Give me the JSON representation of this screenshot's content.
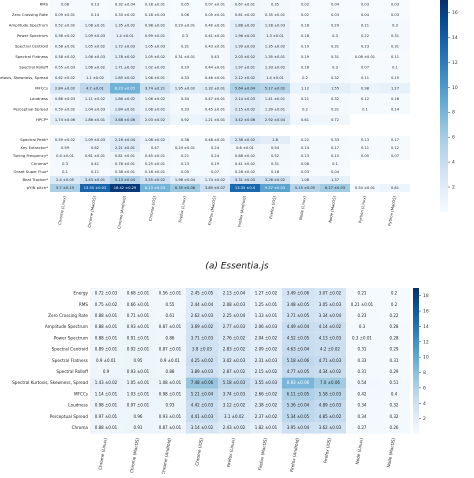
{
  "chart_data": [
    {
      "type": "heatmap",
      "caption": "(a) Essentia.js",
      "rows": [
        "RMS",
        "Zero Crossing Rate",
        "Amplitude Spectrum",
        "Power Spectrum",
        "Spectral Centroid",
        "Spectral Flatness",
        "Spectral Rolloff",
        "Spectral Kurtosis, Skewness, Spread",
        "MFCCs",
        "Loudness",
        "Perceptual Spread",
        "HPCP*",
        "Spectral Peak*",
        "Key Extractor*",
        "Tuning Frequency*",
        "Chroma*",
        "Onset Super Flux*",
        "Beat Tracker*",
        "pYIN pitch*"
      ],
      "columns": [
        "Chrome (Linux)",
        "Chrome (MacOS)",
        "Chrome (Android)",
        "Chrome (iOS)",
        "Firefox (Linux)",
        "Firefox (MacOS)",
        "Firefox (Android)",
        "Firefox (iOS)",
        "Node (Linux)",
        "Node (MacOS)",
        "Python (Linux)",
        "Python (MacOS)"
      ],
      "values": [
        [
          0.08,
          0.13,
          0.32,
          0.18,
          0.05,
          0.07,
          0.67,
          0.35,
          0.02,
          0.04,
          0.03,
          0.03
        ],
        [
          0.09,
          0.14,
          0.33,
          0.18,
          0.06,
          0.05,
          0.61,
          0.35,
          0.02,
          0.03,
          0.04,
          0.03
        ],
        [
          0.52,
          1.08,
          1.35,
          0.98,
          0.29,
          0.4,
          1.88,
          1.28,
          0.18,
          0.29,
          0.21,
          0.3
        ],
        [
          0.56,
          1.09,
          1.4,
          0.99,
          0.3,
          0.41,
          1.96,
          1.3,
          0.18,
          0.3,
          0.22,
          0.31
        ],
        [
          0.58,
          1.05,
          1.72,
          1.05,
          0.31,
          0.43,
          1.99,
          1.35,
          0.19,
          0.31,
          0.23,
          0.31
        ],
        [
          0.58,
          1.06,
          1.78,
          1.05,
          0.31,
          0.43,
          2.03,
          1.35,
          0.19,
          0.31,
          0.08,
          0.11
        ],
        [
          0.55,
          1.06,
          1.71,
          1.02,
          0.29,
          0.44,
          1.97,
          1.33,
          0.18,
          0.3,
          0.07,
          0.1
        ],
        [
          0.62,
          1.1,
          1.85,
          1.06,
          0.33,
          0.46,
          2.12,
          1.4,
          0.2,
          0.32,
          0.11,
          0.15
        ],
        [
          2.84,
          4.7,
          8.23,
          3.74,
          1.95,
          2.32,
          5.64,
          5.17,
          1.12,
          1.55,
          0.98,
          1.27
        ],
        [
          0.66,
          1.11,
          1.86,
          1.06,
          0.34,
          0.47,
          2.14,
          1.41,
          0.21,
          0.32,
          0.12,
          0.16
        ],
        [
          0.59,
          1.04,
          1.84,
          1.08,
          0.33,
          0.45,
          2.15,
          1.39,
          0.2,
          0.31,
          0.1,
          0.14
        ],
        [
          1.74,
          1.86,
          3.68,
          2.03,
          0.92,
          1.21,
          3.42,
          2.92,
          0.61,
          0.72,
          null,
          null
        ],
        [
          0.59,
          1.09,
          2.16,
          1.08,
          0.36,
          0.48,
          2.38,
          1.8,
          0.22,
          0.33,
          0.13,
          0.17
        ],
        [
          0.59,
          0.62,
          2.21,
          0.47,
          0.24,
          0.24,
          0.6,
          0.54,
          0.14,
          0.17,
          0.11,
          0.12
        ],
        [
          0.4,
          0.61,
          0.81,
          0.45,
          0.21,
          0.24,
          0.68,
          0.52,
          0.13,
          0.15,
          0.05,
          0.07
        ],
        [
          0.3,
          0.41,
          0.76,
          0.25,
          0.13,
          0.19,
          0.41,
          0.31,
          0.08,
          0.1,
          null,
          null
        ],
        [
          0.1,
          0.11,
          0.38,
          0.18,
          0.05,
          0.07,
          0.28,
          0.18,
          0.03,
          0.04,
          null,
          null
        ],
        [
          2.4,
          3.43,
          5.13,
          3.55,
          1.98,
          1.74,
          3.31,
          3.26,
          1.08,
          1.37,
          null,
          null
        ],
        [
          5.7,
          13.55,
          16.42,
          8.13,
          6.35,
          3.89,
          13.35,
          9.37,
          5.15,
          6.17,
          0.54,
          0.81
        ]
      ],
      "value_labels": [
        [
          "0.08",
          "0.13",
          "0.32 ±0.04",
          "0.18 ±0.01",
          "0.05",
          "0.07 ±0.01",
          "0.67 ±0.01",
          "0.35",
          "0.02",
          "0.04",
          "0.03",
          "0.03"
        ],
        [
          "0.09 ±0.01",
          "0.14",
          "0.33 ±0.02",
          "0.18 ±0.03",
          "0.06",
          "0.05 ±0.01",
          "0.61 ±0.02",
          "0.35 ±0.01",
          "0.02",
          "0.03",
          "0.04",
          "0.03"
        ],
        [
          "0.52 ±0.02",
          "1.08 ±0.01",
          "1.35 ±0.02",
          "0.98 ±0.02",
          "0.29 ±0.01",
          "0.40 ±0.01",
          "1.88 ±0.02",
          "1.28 ±0.03",
          "0.18",
          "0.29",
          "0.21",
          "0.3"
        ],
        [
          "0.56 ±0.02",
          "1.09 ±0.03",
          "1.4 ±0.01",
          "0.99 ±0.01",
          "0.3",
          "0.41 ±0.01",
          "1.96 ±0.03",
          "1.3 ±0.01",
          "0.18",
          "0.3",
          "0.22",
          "0.31"
        ],
        [
          "0.58 ±0.01",
          "1.05 ±0.02",
          "1.72 ±0.03",
          "1.05 ±0.03",
          "0.31",
          "0.43 ±0.01",
          "1.99 ±0.03",
          "1.35 ±0.02",
          "0.19",
          "0.31",
          "0.23",
          "0.31"
        ],
        [
          "0.58 ±0.02",
          "1.06 ±0.03",
          "1.78 ±0.02",
          "1.05 ±0.02",
          "0.31 ±0.01",
          "0.43",
          "2.03 ±0.02",
          "1.35 ±0.01",
          "0.19",
          "0.31",
          "0.08 ±0.01",
          "0.11"
        ],
        [
          "0.55 ±0.03",
          "1.06 ±0.02",
          "1.71 ±0.02",
          "1.02 ±0.02",
          "0.29",
          "0.44 ±0.01",
          "1.97 ±0.01",
          "1.33 ±0.02",
          "0.18",
          "0.3",
          "0.07",
          "0.1"
        ],
        [
          "0.62 ±0.02",
          "1.1 ±0.02",
          "1.85 ±0.02",
          "1.06 ±0.01",
          "0.33",
          "0.46 ±0.01",
          "2.12 ±0.02",
          "1.4 ±0.01",
          "0.2",
          "0.32",
          "0.11",
          "0.15"
        ],
        [
          "2.84 ±0.02",
          "4.7 ±0.01",
          "8.23 ±0.05",
          "3.74 ±0.21",
          "1.95 ±0.02",
          "2.32 ±0.01",
          "5.64 ±0.04",
          "5.17 ±0.02",
          "1.12",
          "1.55",
          "0.98",
          "1.27"
        ],
        [
          "0.66 ±0.03",
          "1.11 ±0.02",
          "1.86 ±0.02",
          "1.06 ±0.02",
          "0.34",
          "0.47 ±0.01",
          "2.14 ±0.03",
          "1.41 ±0.01",
          "0.21",
          "0.32",
          "0.12",
          "0.16"
        ],
        [
          "0.59 ±0.02",
          "1.04 ±0.03",
          "1.84 ±0.01",
          "1.08 ±0.02",
          "0.33",
          "0.45 ±0.01",
          "2.15 ±0.02",
          "1.39 ±0.01",
          "0.2",
          "0.31",
          "0.1",
          "0.14"
        ],
        [
          "1.74 ±0.06",
          "1.86 ±0.01",
          "3.68 ±0.06",
          "2.03 ±0.02",
          "0.92",
          "1.21 ±0.01",
          "3.42 ±0.06",
          "2.92 ±0.04",
          "0.61",
          "0.72",
          null,
          null
        ],
        [
          "0.59 ±0.02",
          "1.09 ±0.03",
          "2.16 ±0.04",
          "1.08 ±0.02",
          "0.36",
          "0.48 ±0.01",
          "2.38 ±0.02",
          "1.8",
          "0.22",
          "0.33",
          "0.13",
          "0.17"
        ],
        [
          "0.59",
          "0.62",
          "2.21 ±0.01",
          "0.47",
          "0.24 ±0.01",
          "0.24",
          "0.6 ±0.01",
          "0.54",
          "0.14",
          "0.17",
          "0.11",
          "0.12"
        ],
        [
          "0.4 ±0.01",
          "0.61 ±0.01",
          "0.81 ±0.01",
          "0.45 ±0.01",
          "0.21",
          "0.24",
          "0.68 ±0.02",
          "0.52",
          "0.13",
          "0.15",
          "0.05",
          "0.07"
        ],
        [
          "0.3",
          "0.41",
          "0.76 ±0.01",
          "0.25 ±0.01",
          "0.13",
          "0.19",
          "0.41 ±0.02",
          "0.31",
          "0.08",
          "0.1",
          null,
          null
        ],
        [
          "0.1",
          "0.11",
          "0.38 ±0.01",
          "0.18 ±0.01",
          "0.05",
          "0.07",
          "0.28 ±0.02",
          "0.18",
          "0.03",
          "0.04",
          null,
          null
        ],
        [
          "2.4 ±0.05",
          "3.43 ±0.01",
          "5.13 ±0.04",
          "3.55 ±0.02",
          "1.98 ±0.04",
          "1.74 ±0.02",
          "3.31 ±0.03",
          "3.26 ±0.02",
          "1.08",
          "1.37",
          null,
          null
        ],
        [
          "5.7 ±0.19",
          "13.55 ±0.03",
          "16.42 ±0.29",
          "8.13 ±0.03",
          "6.35 ±0.08",
          "3.89 ±0.07",
          "13.35 ±0.4",
          "9.37 ±0.03",
          "5.15 ±0.05",
          "6.17 ±0.03",
          "0.54 ±0.01",
          "0.81"
        ]
      ],
      "clim": [
        0,
        17
      ],
      "cticks": [
        2,
        4,
        6,
        8,
        10,
        12,
        14,
        16
      ]
    },
    {
      "type": "heatmap",
      "rows": [
        "Energy",
        "RMS",
        "Zero Crossing Rate",
        "Amplitude Spectrum",
        "Power Spectrum",
        "Spectral Centroid",
        "Spectral Flatness",
        "Spectral Rolloff",
        "Spectral Kurtosis, Skewness, Spread",
        "MFCCs",
        "Loudness",
        "Perceptual Spread",
        "Chroma"
      ],
      "columns": [
        "Chrome (Linux)",
        "Chrome (MacOS)",
        "Chrome (Android)",
        "Chrome (iOS)",
        "Firefox (Linux)",
        "Firefox (MacOS)",
        "Firefox (Android)",
        "Firefox (iOS)",
        "Node (Linux)",
        "Node (MacOS)"
      ],
      "values": [
        [
          0.72,
          0.68,
          0.56,
          2.45,
          2.13,
          1.27,
          3.49,
          3.07,
          0.21,
          0.2
        ],
        [
          0.75,
          0.66,
          0.55,
          2.44,
          2.08,
          1.25,
          3.48,
          3.05,
          0.21,
          0.2
        ],
        [
          0.88,
          0.71,
          0.61,
          2.62,
          2.25,
          1.33,
          3.71,
          3.34,
          0.23,
          0.22
        ],
        [
          0.88,
          0.93,
          0.87,
          3.69,
          2.77,
          2.06,
          4.49,
          4.14,
          0.3,
          0.28
        ],
        [
          0.88,
          0.91,
          0.86,
          3.71,
          2.76,
          2.04,
          4.52,
          4.13,
          0.3,
          0.28
        ],
        [
          0.89,
          0.92,
          0.87,
          3.8,
          2.83,
          2.09,
          4.63,
          4.2,
          0.31,
          0.29
        ],
        [
          0.9,
          0.95,
          0.9,
          4.25,
          3.02,
          2.31,
          5.18,
          4.71,
          0.33,
          0.31
        ],
        [
          0.9,
          0.93,
          0.88,
          3.89,
          2.87,
          2.15,
          4.77,
          4.34,
          0.31,
          0.29
        ],
        [
          1.43,
          1.05,
          1.08,
          7.48,
          5.18,
          3.55,
          8.83,
          7.0,
          0.54,
          0.51
        ],
        [
          1.14,
          1.03,
          0.98,
          5.21,
          3.74,
          2.66,
          6.11,
          5.58,
          0.42,
          0.4
        ],
        [
          0.98,
          0.97,
          0.93,
          4.42,
          3.12,
          2.38,
          5.36,
          4.89,
          0.34,
          0.32
        ],
        [
          0.97,
          0.96,
          0.93,
          4.41,
          3.1,
          2.37,
          5.34,
          4.85,
          0.34,
          0.32
        ],
        [
          0.88,
          0.91,
          0.87,
          3.14,
          2.43,
          1.82,
          3.95,
          3.62,
          0.27,
          0.26
        ]
      ],
      "value_labels": [
        [
          "0.72 ±0.03",
          "0.68 ±0.01",
          "0.56 ±0.01",
          "2.45 ±0.05",
          "2.13 ±0.04",
          "1.27 ±0.02",
          "3.49 ±0.06",
          "3.07 ±0.02",
          "0.21",
          "0.2"
        ],
        [
          "0.75 ±0.02",
          "0.66 ±0.01",
          "0.55",
          "2.44 ±0.04",
          "2.08 ±0.03",
          "1.25 ±0.01",
          "3.48 ±0.05",
          "3.05 ±0.03",
          "0.21 ±0.01",
          "0.2"
        ],
        [
          "0.88 ±0.01",
          "0.71 ±0.01",
          "0.61",
          "2.62 ±0.03",
          "2.25 ±0.04",
          "1.33 ±0.01",
          "3.71 ±0.05",
          "3.34 ±0.04",
          "0.23",
          "0.22"
        ],
        [
          "0.88 ±0.01",
          "0.93 ±0.01",
          "0.87 ±0.01",
          "3.69 ±0.02",
          "2.77 ±0.03",
          "2.06 ±0.03",
          "4.49 ±0.04",
          "4.14 ±0.02",
          "0.3",
          "0.28"
        ],
        [
          "0.88 ±0.01",
          "0.91 ±0.01",
          "0.86",
          "3.71 ±0.03",
          "2.76 ±0.02",
          "2.04 ±0.02",
          "4.52 ±0.05",
          "4.13 ±0.03",
          "0.3 ±0.01",
          "0.28"
        ],
        [
          "0.89 ±0.01",
          "0.92 ±0.01",
          "0.87 ±0.01",
          "3.8 ±0.03",
          "2.83 ±0.02",
          "2.09 ±0.02",
          "4.63 ±0.04",
          "4.2 ±0.02",
          "0.31",
          "0.29"
        ],
        [
          "0.9 ±0.01",
          "0.95",
          "0.9 ±0.01",
          "4.25 ±0.02",
          "3.02 ±0.03",
          "2.31 ±0.03",
          "5.18 ±0.06",
          "4.71 ±0.03",
          "0.33",
          "0.31"
        ],
        [
          "0.9",
          "0.93 ±0.01",
          "0.88",
          "3.89 ±0.03",
          "2.87 ±0.02",
          "2.15 ±0.02",
          "4.77 ±0.05",
          "4.34 ±0.02",
          "0.31",
          "0.29"
        ],
        [
          "1.43 ±0.02",
          "1.05 ±0.01",
          "1.08 ±0.01",
          "7.48 ±0.06",
          "5.18 ±0.03",
          "3.55 ±0.03",
          "8.83 ±0.06",
          "7.0 ±0.06",
          "0.54",
          "0.51"
        ],
        [
          "1.14 ±0.01",
          "1.03 ±0.01",
          "0.98 ±0.01",
          "5.21 ±0.04",
          "3.74 ±0.03",
          "2.66 ±0.02",
          "6.11 ±0.05",
          "5.58 ±0.03",
          "0.42",
          "0.4"
        ],
        [
          "0.98 ±0.01",
          "0.97 ±0.01",
          "0.93",
          "4.42 ±0.03",
          "3.12 ±0.02",
          "2.38 ±0.02",
          "5.36 ±0.04",
          "4.89 ±0.03",
          "0.34",
          "0.32"
        ],
        [
          "0.97 ±0.01",
          "0.96",
          "0.93 ±0.01",
          "4.41 ±0.03",
          "3.1 ±0.02",
          "2.37 ±0.02",
          "5.34 ±0.05",
          "4.85 ±0.02",
          "0.34",
          "0.32"
        ],
        [
          "0.88 ±0.01",
          "0.91",
          "0.87 ±0.01",
          "3.14 ±0.02",
          "2.43 ±0.02",
          "1.82 ±0.01",
          "3.95 ±0.04",
          "3.62 ±0.03",
          "0.27",
          "0.26"
        ]
      ],
      "clim": [
        0,
        19
      ],
      "cticks": [
        2,
        4,
        6,
        8,
        10,
        12,
        14,
        16,
        18
      ]
    }
  ]
}
